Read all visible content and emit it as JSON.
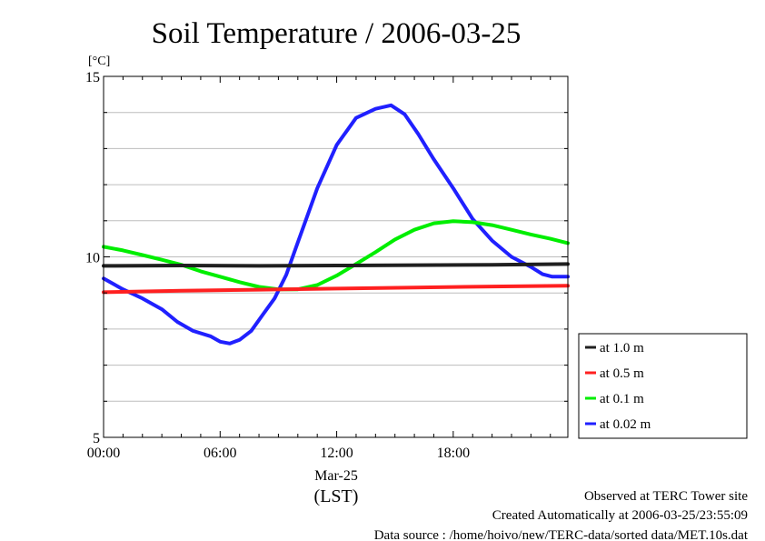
{
  "chart_data": {
    "type": "line",
    "title": "Soil Temperature / 2006-03-25",
    "ylabel": "[°C]",
    "xlabel": "(LST)",
    "date_label": "Mar-25",
    "ylim": [
      5,
      15
    ],
    "xlim": [
      0,
      23.9
    ],
    "x_ticks": [
      {
        "hour": 0,
        "label": "00:00"
      },
      {
        "hour": 6,
        "label": "06:00"
      },
      {
        "hour": 12,
        "label": "12:00"
      },
      {
        "hour": 18,
        "label": "18:00"
      }
    ],
    "y_ticks": [
      5,
      10,
      15
    ],
    "grid": true,
    "legend_position": "right",
    "series": [
      {
        "name": "at 1.0 m",
        "color": "#202020",
        "x": [
          0,
          4,
          8,
          12,
          16,
          20,
          23.9
        ],
        "y": [
          9.75,
          9.76,
          9.75,
          9.76,
          9.77,
          9.78,
          9.8
        ]
      },
      {
        "name": "at 0.5 m",
        "color": "#ff2020",
        "x": [
          0,
          4,
          8,
          12,
          16,
          20,
          23.9
        ],
        "y": [
          9.02,
          9.06,
          9.09,
          9.12,
          9.15,
          9.18,
          9.2
        ]
      },
      {
        "name": "at 0.1 m",
        "color": "#00ee00",
        "x": [
          0,
          1,
          2,
          3,
          4,
          5,
          6,
          7,
          8,
          9,
          10,
          11,
          12,
          13,
          14,
          15,
          16,
          17,
          18,
          19,
          20,
          21,
          22,
          23,
          23.9
        ],
        "y": [
          10.28,
          10.18,
          10.05,
          9.92,
          9.78,
          9.6,
          9.45,
          9.3,
          9.17,
          9.1,
          9.1,
          9.22,
          9.48,
          9.8,
          10.13,
          10.48,
          10.75,
          10.93,
          10.99,
          10.96,
          10.88,
          10.75,
          10.62,
          10.5,
          10.38
        ]
      },
      {
        "name": "at 0.02 m",
        "color": "#2020ff",
        "x": [
          0,
          1,
          2,
          3,
          3.8,
          4.6,
          5.5,
          6,
          6.5,
          7,
          7.6,
          8.2,
          8.8,
          9.4,
          10,
          11,
          12,
          13,
          14,
          14.8,
          15.5,
          16.2,
          17,
          18,
          19,
          20,
          21,
          22,
          22.6,
          23.1,
          23.9
        ],
        "y": [
          9.4,
          9.1,
          8.85,
          8.55,
          8.2,
          7.95,
          7.8,
          7.65,
          7.6,
          7.7,
          7.95,
          8.4,
          8.85,
          9.5,
          10.4,
          11.9,
          13.1,
          13.85,
          14.1,
          14.2,
          13.95,
          13.4,
          12.7,
          11.9,
          11.05,
          10.45,
          10,
          9.72,
          9.52,
          9.45,
          9.45
        ]
      }
    ],
    "footer": [
      "Observed at TERC Tower site",
      "Created Automatically at 2006-03-25/23:55:09",
      "Data source : /home/hoivo/new/TERC-data/sorted  data/MET.10s.dat"
    ]
  }
}
